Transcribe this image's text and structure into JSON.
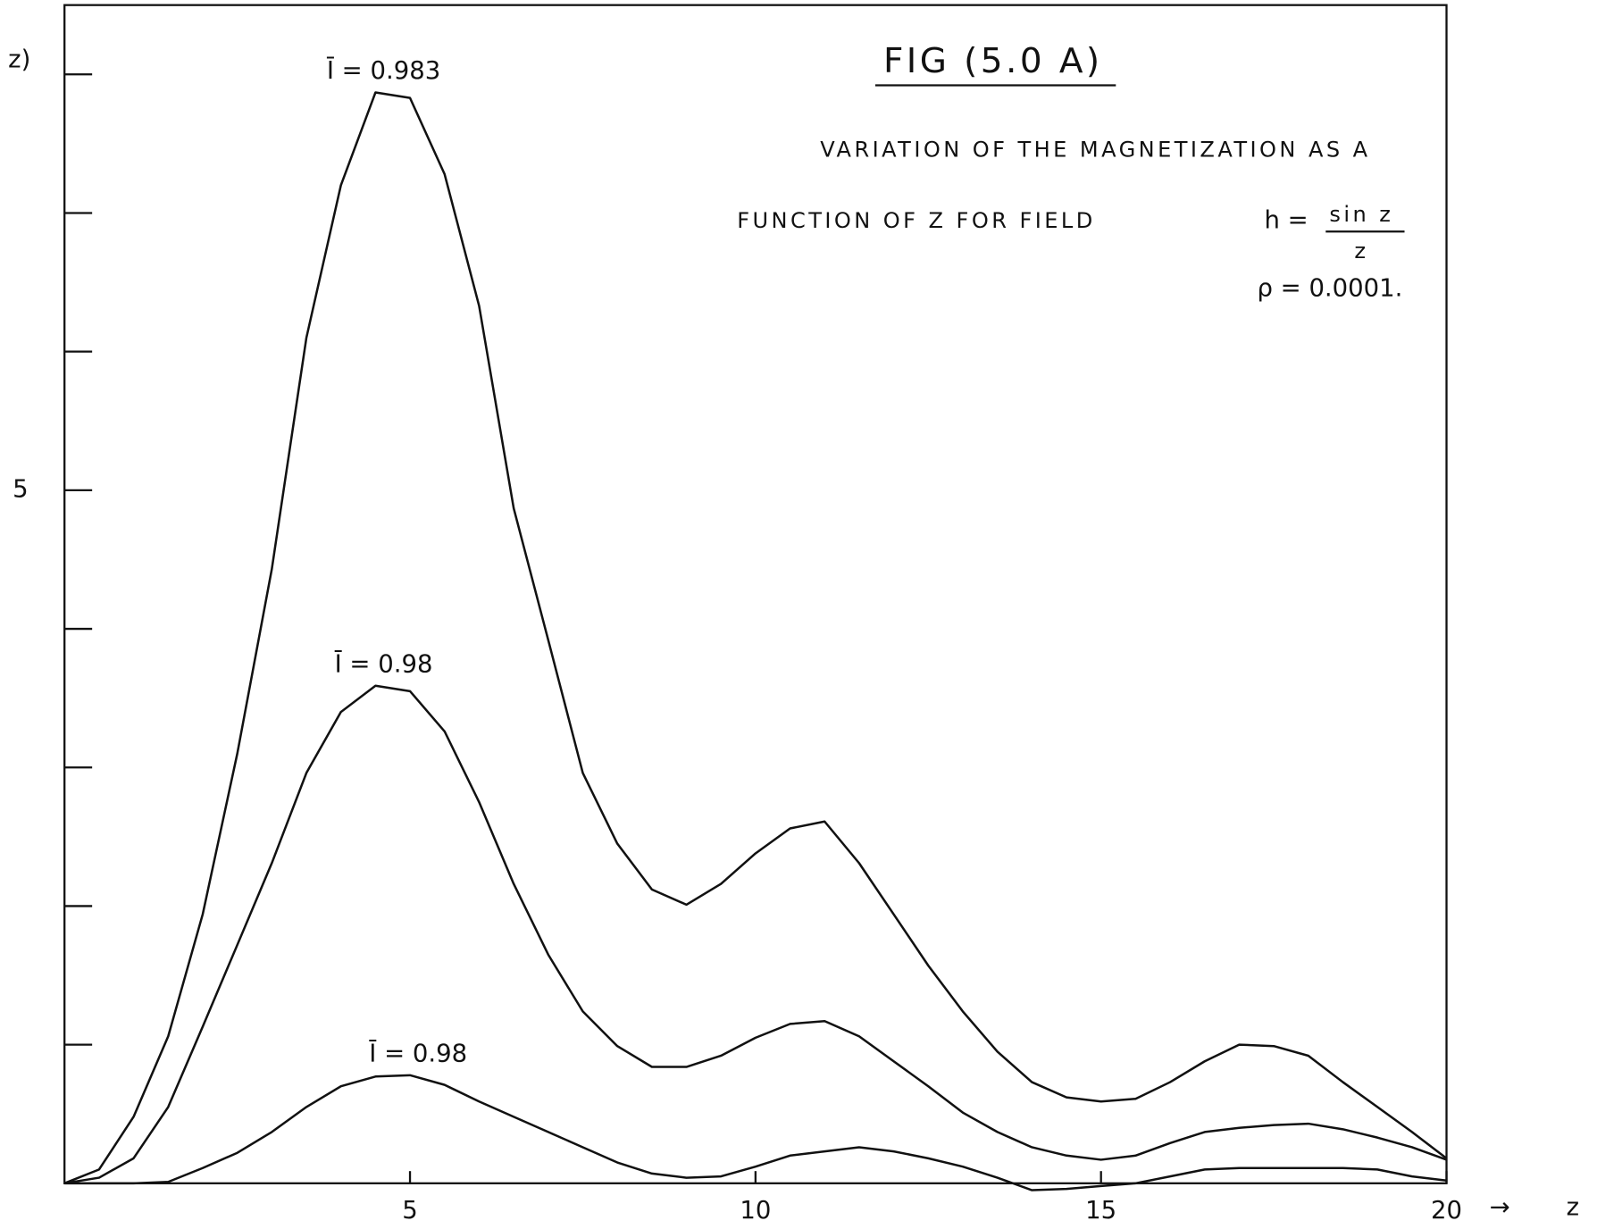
{
  "chart_data": {
    "type": "line",
    "title": "FIG (5.0 A)",
    "annotations": [
      "VARIATION OF THE MAGNETIZATION AS A",
      "FUNCTION OF Z FOR FIELD"
    ],
    "formula": {
      "lhs": "h =",
      "numerator": "sin z",
      "denominator": "z",
      "parameter": "ρ = 0.0001."
    },
    "x_label": "z",
    "y_label": "z)",
    "x": [
      0,
      0.5,
      1,
      1.5,
      2,
      2.5,
      3,
      3.5,
      4,
      4.5,
      5,
      5.5,
      6,
      6.5,
      7,
      7.5,
      8,
      8.5,
      9,
      9.5,
      10,
      10.5,
      11,
      11.5,
      12,
      12.5,
      13,
      13.5,
      14,
      14.5,
      15,
      15.5,
      16,
      16.5,
      17,
      17.5,
      18,
      18.5,
      19,
      19.5,
      20
    ],
    "series": [
      {
        "name": "Ī = 0.983",
        "color": "#111111",
        "values": [
          0,
          0.1,
          0.48,
          1.06,
          1.94,
          3.1,
          4.43,
          6.1,
          7.2,
          7.87,
          7.83,
          7.28,
          6.33,
          4.87,
          3.92,
          2.96,
          2.45,
          2.12,
          2.01,
          2.16,
          2.38,
          2.56,
          2.61,
          2.31,
          1.94,
          1.57,
          1.24,
          0.95,
          0.73,
          0.62,
          0.59,
          0.61,
          0.73,
          0.88,
          1.0,
          0.99,
          0.92,
          0.73,
          0.55,
          0.37,
          0.18
        ]
      },
      {
        "name": "Ī = 0.98",
        "color": "#111111",
        "values": [
          0,
          0.04,
          0.18,
          0.55,
          1.13,
          1.72,
          2.31,
          2.96,
          3.4,
          3.59,
          3.55,
          3.26,
          2.75,
          2.16,
          1.65,
          1.24,
          0.99,
          0.84,
          0.84,
          0.92,
          1.05,
          1.15,
          1.17,
          1.06,
          0.88,
          0.7,
          0.51,
          0.37,
          0.26,
          0.2,
          0.17,
          0.2,
          0.29,
          0.37,
          0.4,
          0.42,
          0.43,
          0.39,
          0.33,
          0.26,
          0.17
        ]
      },
      {
        "name": "Ī = 0.98",
        "color": "#111111",
        "values": [
          0,
          0,
          0,
          0.01,
          0.11,
          0.22,
          0.37,
          0.55,
          0.7,
          0.77,
          0.78,
          0.71,
          0.59,
          0.48,
          0.37,
          0.26,
          0.15,
          0.07,
          0.04,
          0.05,
          0.12,
          0.2,
          0.23,
          0.26,
          0.23,
          0.18,
          0.12,
          0.04,
          -0.05,
          -0.04,
          -0.02,
          0,
          0.05,
          0.1,
          0.11,
          0.11,
          0.11,
          0.11,
          0.1,
          0.05,
          0.02
        ]
      }
    ],
    "xlim": [
      0,
      20
    ],
    "xticks": [
      5,
      10,
      15,
      20
    ],
    "ylim": [
      0,
      8.5
    ],
    "yticks": [
      5
    ],
    "yminor_ticks": [
      1,
      2,
      3,
      4,
      6,
      7,
      8
    ]
  }
}
